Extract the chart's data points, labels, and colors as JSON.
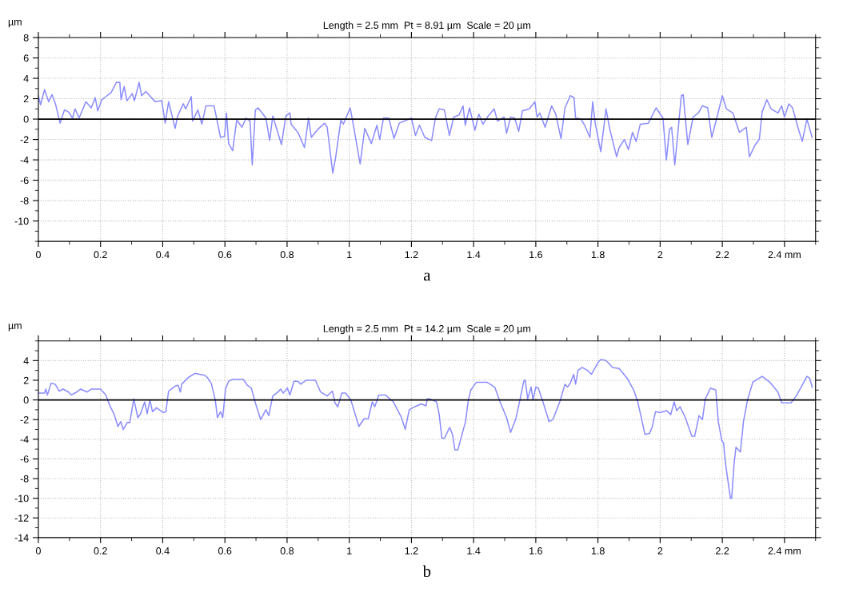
{
  "chart_data": [
    {
      "type": "line",
      "title": "Length = 2.5 mm  Pt = 8.91 µm  Scale = 20 µm",
      "xlabel": "a",
      "ylabel": "µm",
      "xlim": [
        0,
        2.5
      ],
      "ylim": [
        -12,
        8
      ],
      "xticks": [
        0,
        0.2,
        0.4,
        0.6,
        0.8,
        1,
        1.2,
        1.4,
        1.6,
        1.8,
        2,
        2.2,
        {
          "value": 2.4,
          "label": "2.4 mm"
        }
      ],
      "yticks": [
        -10,
        -8,
        -6,
        -4,
        -2,
        0,
        2,
        4,
        6,
        8
      ],
      "grid": true,
      "ref_lines": [
        {
          "axis": "y",
          "value": 0,
          "color": "#000000"
        }
      ],
      "series": [
        {
          "color": "#8c8cff",
          "x": [
            0,
            0.007,
            0.02,
            0.033,
            0.044,
            0.055,
            0.07,
            0.084,
            0.097,
            0.11,
            0.118,
            0.131,
            0.153,
            0.17,
            0.183,
            0.191,
            0.204,
            0.217,
            0.234,
            0.251,
            0.262,
            0.266,
            0.276,
            0.285,
            0.302,
            0.309,
            0.324,
            0.332,
            0.346,
            0.358,
            0.376,
            0.397,
            0.408,
            0.419,
            0.44,
            0.448,
            0.466,
            0.474,
            0.492,
            0.496,
            0.513,
            0.526,
            0.539,
            0.565,
            0.586,
            0.599,
            0.605,
            0.612,
            0.625,
            0.638,
            0.655,
            0.668,
            0.681,
            0.688,
            0.698,
            0.707,
            0.732,
            0.744,
            0.754,
            0.782,
            0.796,
            0.809,
            0.813,
            0.835,
            0.856,
            0.869,
            0.878,
            0.899,
            0.921,
            0.929,
            0.947,
            0.956,
            0.973,
            0.981,
            1.003,
            1.011,
            1.035,
            1.05,
            1.071,
            1.089,
            1.098,
            1.11,
            1.127,
            1.144,
            1.161,
            1.2,
            1.213,
            1.226,
            1.243,
            1.265,
            1.277,
            1.289,
            1.306,
            1.322,
            1.336,
            1.353,
            1.366,
            1.373,
            1.387,
            1.404,
            1.417,
            1.43,
            1.447,
            1.466,
            1.477,
            1.498,
            1.506,
            1.519,
            1.532,
            1.545,
            1.557,
            1.579,
            1.597,
            1.604,
            1.613,
            1.63,
            1.651,
            1.664,
            1.681,
            1.694,
            1.711,
            1.723,
            1.728,
            1.745,
            1.757,
            1.774,
            1.783,
            1.791,
            1.809,
            1.826,
            1.838,
            1.86,
            1.868,
            1.885,
            1.898,
            1.911,
            1.923,
            1.936,
            1.962,
            1.987,
            2.009,
            2.02,
            2.03,
            2.037,
            2.047,
            2.055,
            2.068,
            2.074,
            2.081,
            2.089,
            2.106,
            2.123,
            2.136,
            2.153,
            2.166,
            2.183,
            2.2,
            2.213,
            2.234,
            2.255,
            2.277,
            2.287,
            2.306,
            2.319,
            2.328,
            2.343,
            2.357,
            2.379,
            2.391,
            2.4,
            2.414,
            2.426,
            2.443,
            2.457,
            2.472,
            2.489
          ],
          "values": [
            2.3,
            1.4,
            2.9,
            1.7,
            2.4,
            1.5,
            -0.4,
            0.9,
            0.7,
            0.1,
            1.0,
            0.1,
            1.7,
            1.1,
            2.1,
            0.8,
            1.9,
            2.2,
            2.6,
            3.6,
            3.6,
            1.9,
            3.2,
            1.8,
            2.5,
            1.8,
            3.6,
            2.3,
            2.7,
            2.3,
            1.7,
            1.8,
            -0.4,
            1.7,
            -0.9,
            0.3,
            1.5,
            1.0,
            2.2,
            -0.2,
            0.9,
            -0.5,
            1.3,
            1.3,
            -1.8,
            -1.7,
            0.6,
            -2.4,
            -3.1,
            -0.1,
            -0.8,
            0.1,
            -0.2,
            -4.5,
            0.9,
            1.1,
            0.1,
            -2.1,
            0.3,
            -2.5,
            0.3,
            0.6,
            -0.5,
            -1.3,
            -2.8,
            0.1,
            -1.8,
            -1.0,
            -0.4,
            -0.8,
            -5.3,
            -3.8,
            -0.1,
            -0.5,
            1.1,
            -0.2,
            -4.4,
            -0.9,
            -2.4,
            -0.6,
            -2.0,
            0.1,
            0.1,
            -1.9,
            -0.4,
            0.1,
            -1.6,
            -0.6,
            -1.8,
            -2.1,
            0.1,
            1.0,
            0.9,
            -1.6,
            0.2,
            0.4,
            1.3,
            -0.6,
            1.1,
            -1.1,
            0.5,
            -0.5,
            0.3,
            1.0,
            -0.2,
            0.2,
            -1.4,
            0.2,
            0.1,
            -1.2,
            0.8,
            1.0,
            1.7,
            0.2,
            0.6,
            -0.8,
            1.3,
            0.5,
            -1.9,
            1.1,
            2.3,
            2.1,
            0.1,
            0.0,
            -0.6,
            -1.8,
            1.7,
            -0.4,
            -3.2,
            1.0,
            -1.0,
            -3.7,
            -2.8,
            -2.0,
            -3.0,
            -1.3,
            -2.2,
            -0.5,
            -0.4,
            1.1,
            0.1,
            -4.0,
            -1.0,
            -0.8,
            -4.5,
            -2.0,
            2.3,
            2.4,
            0.1,
            -2.5,
            0.2,
            0.6,
            1.3,
            1.1,
            -1.8,
            0.2,
            2.3,
            1.0,
            0.6,
            -1.3,
            -0.8,
            -3.7,
            -2.5,
            -2.0,
            0.7,
            1.9,
            1.0,
            0.6,
            1.3,
            0.2,
            1.5,
            1.1,
            -0.8,
            -2.2,
            0.0,
            -1.8
          ]
        }
      ]
    },
    {
      "type": "line",
      "title": "Length = 2.5 mm  Pt = 14.2 µm  Scale = 20 µm",
      "xlabel": "b",
      "ylabel": "µm",
      "xlim": [
        0,
        2.5
      ],
      "ylim": [
        -14,
        6
      ],
      "xticks": [
        0,
        0.2,
        0.4,
        0.6,
        0.8,
        1,
        1.2,
        1.4,
        1.6,
        1.8,
        2,
        2.2,
        {
          "value": 2.4,
          "label": "2.4 mm"
        }
      ],
      "yticks": [
        -14,
        -12,
        -10,
        -8,
        -6,
        -4,
        -2,
        0,
        2,
        4
      ],
      "grid": true,
      "ref_lines": [
        {
          "axis": "y",
          "value": 0,
          "color": "#000000"
        }
      ],
      "series": [
        {
          "color": "#8c8cff",
          "x": [
            0,
            0.02,
            0.024,
            0.029,
            0.041,
            0.054,
            0.067,
            0.08,
            0.097,
            0.106,
            0.123,
            0.136,
            0.157,
            0.17,
            0.2,
            0.217,
            0.23,
            0.243,
            0.256,
            0.265,
            0.273,
            0.286,
            0.294,
            0.307,
            0.32,
            0.329,
            0.342,
            0.35,
            0.359,
            0.367,
            0.38,
            0.402,
            0.41,
            0.419,
            0.44,
            0.449,
            0.457,
            0.461,
            0.483,
            0.504,
            0.535,
            0.543,
            0.556,
            0.569,
            0.576,
            0.586,
            0.593,
            0.602,
            0.612,
            0.625,
            0.659,
            0.672,
            0.685,
            0.698,
            0.715,
            0.732,
            0.741,
            0.754,
            0.771,
            0.779,
            0.788,
            0.801,
            0.809,
            0.822,
            0.835,
            0.844,
            0.861,
            0.891,
            0.908,
            0.929,
            0.946,
            0.954,
            0.963,
            0.976,
            0.988,
            1.005,
            1.031,
            1.048,
            1.061,
            1.074,
            1.082,
            1.095,
            1.116,
            1.142,
            1.168,
            1.18,
            1.193,
            1.21,
            1.232,
            1.247,
            1.251,
            1.26,
            1.281,
            1.289,
            1.298,
            1.306,
            1.323,
            1.332,
            1.34,
            1.349,
            1.362,
            1.374,
            1.383,
            1.391,
            1.409,
            1.443,
            1.468,
            1.485,
            1.506,
            1.519,
            1.536,
            1.549,
            1.562,
            1.566,
            1.574,
            1.585,
            1.591,
            1.6,
            1.608,
            1.621,
            1.643,
            1.655,
            1.677,
            1.694,
            1.702,
            1.711,
            1.722,
            1.728,
            1.736,
            1.749,
            1.766,
            1.779,
            1.8,
            1.809,
            1.826,
            1.847,
            1.868,
            1.894,
            1.915,
            1.928,
            1.94,
            1.951,
            1.966,
            1.974,
            1.985,
            2.0,
            2.021,
            2.034,
            2.045,
            2.053,
            2.064,
            2.081,
            2.102,
            2.111,
            2.125,
            2.136,
            2.145,
            2.162,
            2.179,
            2.187,
            2.198,
            2.204,
            2.21,
            2.217,
            2.226,
            2.23,
            2.238,
            2.244,
            2.258,
            2.268,
            2.281,
            2.298,
            2.328,
            2.353,
            2.379,
            2.391,
            2.421,
            2.438,
            2.455,
            2.472,
            2.481,
            2.489
          ],
          "values": [
            0.7,
            0.7,
            1.1,
            0.5,
            1.7,
            1.6,
            0.9,
            1.1,
            0.8,
            0.5,
            0.8,
            1.1,
            0.8,
            1.1,
            1.1,
            0.5,
            -0.6,
            -1.4,
            -2.7,
            -2.2,
            -3.0,
            -2.3,
            -2.3,
            0.1,
            -1.8,
            -1.4,
            -0.2,
            -1.4,
            0.0,
            -1.2,
            -0.8,
            -1.3,
            -1.2,
            0.9,
            1.4,
            1.5,
            0.8,
            1.6,
            2.3,
            2.7,
            2.5,
            2.3,
            1.7,
            0.0,
            -1.8,
            -1.2,
            -1.8,
            1.1,
            1.9,
            2.1,
            2.1,
            1.5,
            1.2,
            -0.3,
            -2.0,
            -1.0,
            -1.6,
            0.4,
            0.8,
            1.1,
            0.7,
            1.2,
            0.5,
            1.9,
            1.9,
            1.6,
            2.0,
            2.0,
            0.8,
            0.4,
            0.9,
            -0.3,
            -0.7,
            0.7,
            0.7,
            0.0,
            -2.7,
            -1.9,
            -1.9,
            -0.2,
            -0.7,
            0.5,
            0.5,
            -0.2,
            -1.8,
            -3.0,
            -1.0,
            -0.7,
            -0.4,
            -0.6,
            0.1,
            0.1,
            -0.2,
            -1.4,
            -3.9,
            -3.9,
            -2.8,
            -3.5,
            -5.1,
            -5.1,
            -3.6,
            -2.2,
            0.0,
            1.0,
            1.8,
            1.8,
            1.3,
            -0.2,
            -1.8,
            -3.3,
            -1.9,
            0.0,
            2.0,
            2.0,
            0.1,
            1.3,
            0.0,
            1.3,
            1.2,
            0.0,
            -2.2,
            -2.0,
            -0.2,
            1.6,
            1.3,
            1.7,
            2.6,
            1.6,
            3.0,
            3.3,
            3.0,
            2.6,
            3.8,
            4.1,
            4.0,
            3.3,
            3.2,
            2.2,
            1.0,
            -0.2,
            -1.9,
            -3.5,
            -3.4,
            -2.8,
            -1.2,
            -1.3,
            -1.1,
            -1.5,
            -0.2,
            -1.1,
            -0.7,
            -1.8,
            -3.7,
            -3.7,
            -1.6,
            -2.0,
            0.1,
            1.2,
            1.0,
            -2.2,
            -4.1,
            -4.4,
            -6.4,
            -8.0,
            -10.0,
            -10.0,
            -6.4,
            -4.8,
            -5.3,
            -2.2,
            0.0,
            1.8,
            2.4,
            1.8,
            0.8,
            -0.3,
            -0.3,
            0.4,
            1.4,
            2.4,
            2.2,
            1.3
          ]
        }
      ]
    }
  ]
}
